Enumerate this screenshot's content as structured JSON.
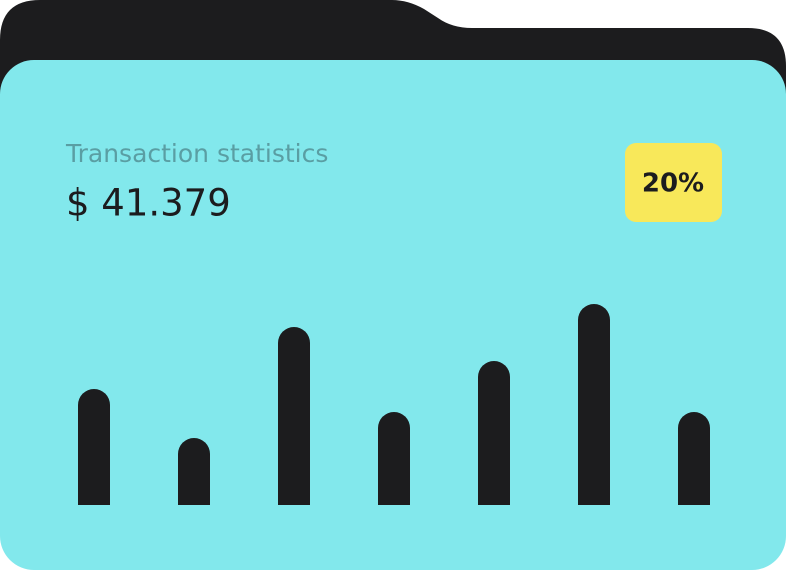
{
  "chart_data": {
    "type": "bar",
    "title": "Transaction statistics",
    "amount": "$ 41.379",
    "badge": "20%",
    "categories": [
      null,
      null,
      null,
      null,
      null,
      null,
      null
    ],
    "values": [
      116,
      67,
      178,
      93,
      144,
      201,
      93
    ],
    "color": "#1c1c1e"
  }
}
